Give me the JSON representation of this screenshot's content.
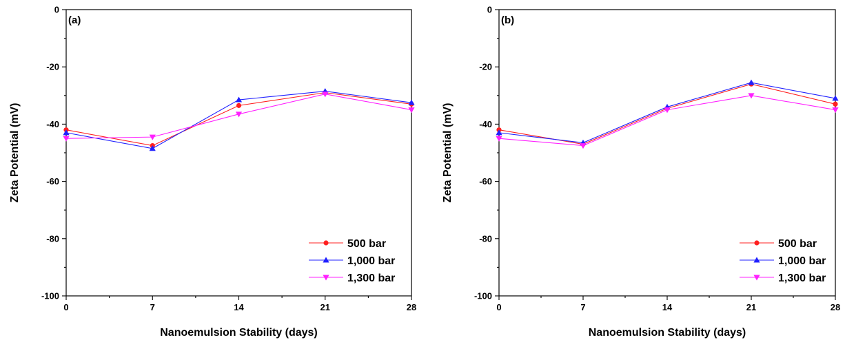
{
  "chart_data": [
    {
      "type": "line",
      "panel_label": "(a)",
      "xlabel": "Nanoemulsion Stability (days)",
      "ylabel": "Zeta Potential (mV)",
      "x": [
        0,
        7,
        14,
        21,
        28
      ],
      "xticks": [
        "0",
        "7",
        "14",
        "21",
        "28"
      ],
      "xlim": [
        0,
        28
      ],
      "ylim": [
        -100,
        0
      ],
      "yticks": [
        "0",
        "-20",
        "-40",
        "-60",
        "-80",
        "-100"
      ],
      "legend_position": "bottom-right",
      "series": [
        {
          "name": "500 bar",
          "color": "#ff2020",
          "marker": "circle",
          "values": [
            -42,
            -47.5,
            -33.5,
            -29,
            -33
          ]
        },
        {
          "name": "1,000 bar",
          "color": "#2020ff",
          "marker": "triangle-up",
          "values": [
            -43,
            -48.5,
            -31.5,
            -28.5,
            -32.5
          ]
        },
        {
          "name": "1,300 bar",
          "color": "#ff20ff",
          "marker": "triangle-down",
          "values": [
            -45,
            -44.5,
            -36.5,
            -29.5,
            -35
          ]
        }
      ]
    },
    {
      "type": "line",
      "panel_label": "(b)",
      "xlabel": "Nanoemulsion Stability (days)",
      "ylabel": "Zeta Potential (mV)",
      "x": [
        0,
        7,
        14,
        21,
        28
      ],
      "xticks": [
        "0",
        "7",
        "14",
        "21",
        "28"
      ],
      "xlim": [
        0,
        28
      ],
      "ylim": [
        -100,
        0
      ],
      "yticks": [
        "0",
        "-20",
        "-40",
        "-60",
        "-80",
        "-100"
      ],
      "legend_position": "bottom-right",
      "series": [
        {
          "name": "500 bar",
          "color": "#ff2020",
          "marker": "circle",
          "values": [
            -42,
            -47,
            -34.5,
            -26,
            -33
          ]
        },
        {
          "name": "1,000 bar",
          "color": "#2020ff",
          "marker": "triangle-up",
          "values": [
            -43,
            -46.5,
            -34,
            -25.5,
            -31
          ]
        },
        {
          "name": "1,300 bar",
          "color": "#ff20ff",
          "marker": "triangle-down",
          "values": [
            -45,
            -47.5,
            -35,
            -30,
            -35
          ]
        }
      ]
    }
  ]
}
